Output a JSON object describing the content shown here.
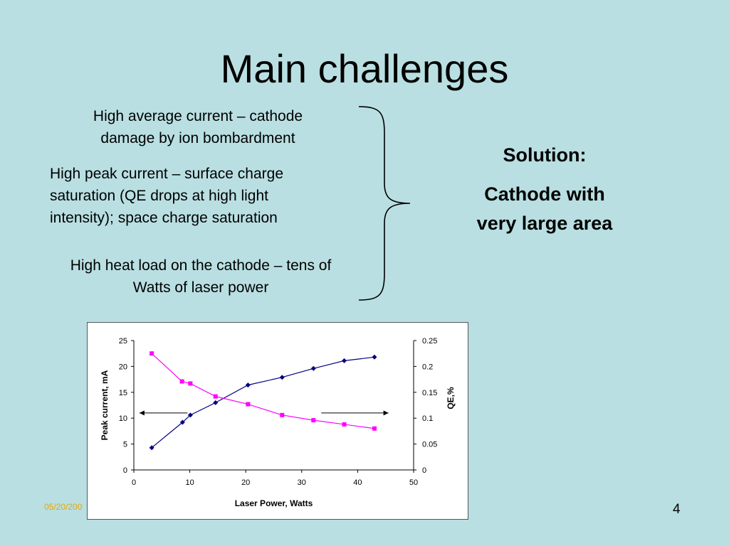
{
  "slide": {
    "title": "Main challenges",
    "challenges": [
      "High average current – cathode damage by ion bombardment",
      "High peak current – surface charge saturation (QE drops at high light intensity); space charge saturation",
      "High heat load on the cathode – tens of Watts of laser power"
    ],
    "challenge_lines": [
      [
        "High average current – cathode",
        "damage by ion bombardment"
      ],
      [
        "High peak current – surface charge",
        "saturation (QE drops at high light",
        "intensity); space charge saturation"
      ],
      [
        "High heat load on the cathode – tens of",
        "Watts of laser power"
      ]
    ],
    "solution_heading": "Solution:",
    "solution_lines": [
      "Cathode with",
      "very large area"
    ],
    "footer_date": "05/20/200",
    "page_number": "4"
  },
  "chart_data": {
    "type": "line",
    "xlabel": "Laser Power, Watts",
    "ylabel_left": "Peak current, mA",
    "ylabel_right": "QE,%",
    "xlim": [
      0,
      50
    ],
    "ylim_left": [
      0,
      25
    ],
    "ylim_right": [
      0,
      0.25
    ],
    "x_ticks": [
      "0",
      "10",
      "20",
      "30",
      "40",
      "50"
    ],
    "y_ticks_left": [
      "0",
      "5",
      "10",
      "15",
      "20",
      "25"
    ],
    "y_ticks_right": [
      "0",
      "0.05",
      "0.1",
      "0.15",
      "0.2",
      "0.25"
    ],
    "grid": false,
    "series": [
      {
        "axis": "left",
        "color": "#000080",
        "marker": "diamond",
        "points": [
          [
            3.2,
            4.3
          ],
          [
            8.7,
            9.2
          ],
          [
            10.1,
            10.6
          ],
          [
            14.6,
            13.0
          ],
          [
            20.4,
            16.4
          ],
          [
            26.5,
            17.9
          ],
          [
            32.1,
            19.6
          ],
          [
            37.6,
            21.1
          ],
          [
            43.0,
            21.8
          ]
        ]
      },
      {
        "axis": "right",
        "color": "#ff00ff",
        "marker": "square",
        "points": [
          [
            3.2,
            0.225
          ],
          [
            8.6,
            0.171
          ],
          [
            10.1,
            0.167
          ],
          [
            14.6,
            0.142
          ],
          [
            20.4,
            0.127
          ],
          [
            26.5,
            0.106
          ],
          [
            32.1,
            0.096
          ],
          [
            37.6,
            0.088
          ],
          [
            43.0,
            0.08
          ]
        ]
      }
    ],
    "annotations": [
      {
        "type": "arrow",
        "direction": "left",
        "axis": "left",
        "x_from": 9.6,
        "x_to": 1.0,
        "y": 11.0
      },
      {
        "type": "arrow",
        "direction": "right",
        "axis": "right",
        "x_from": 33.5,
        "x_to": 45.5,
        "y": 0.11
      }
    ]
  }
}
